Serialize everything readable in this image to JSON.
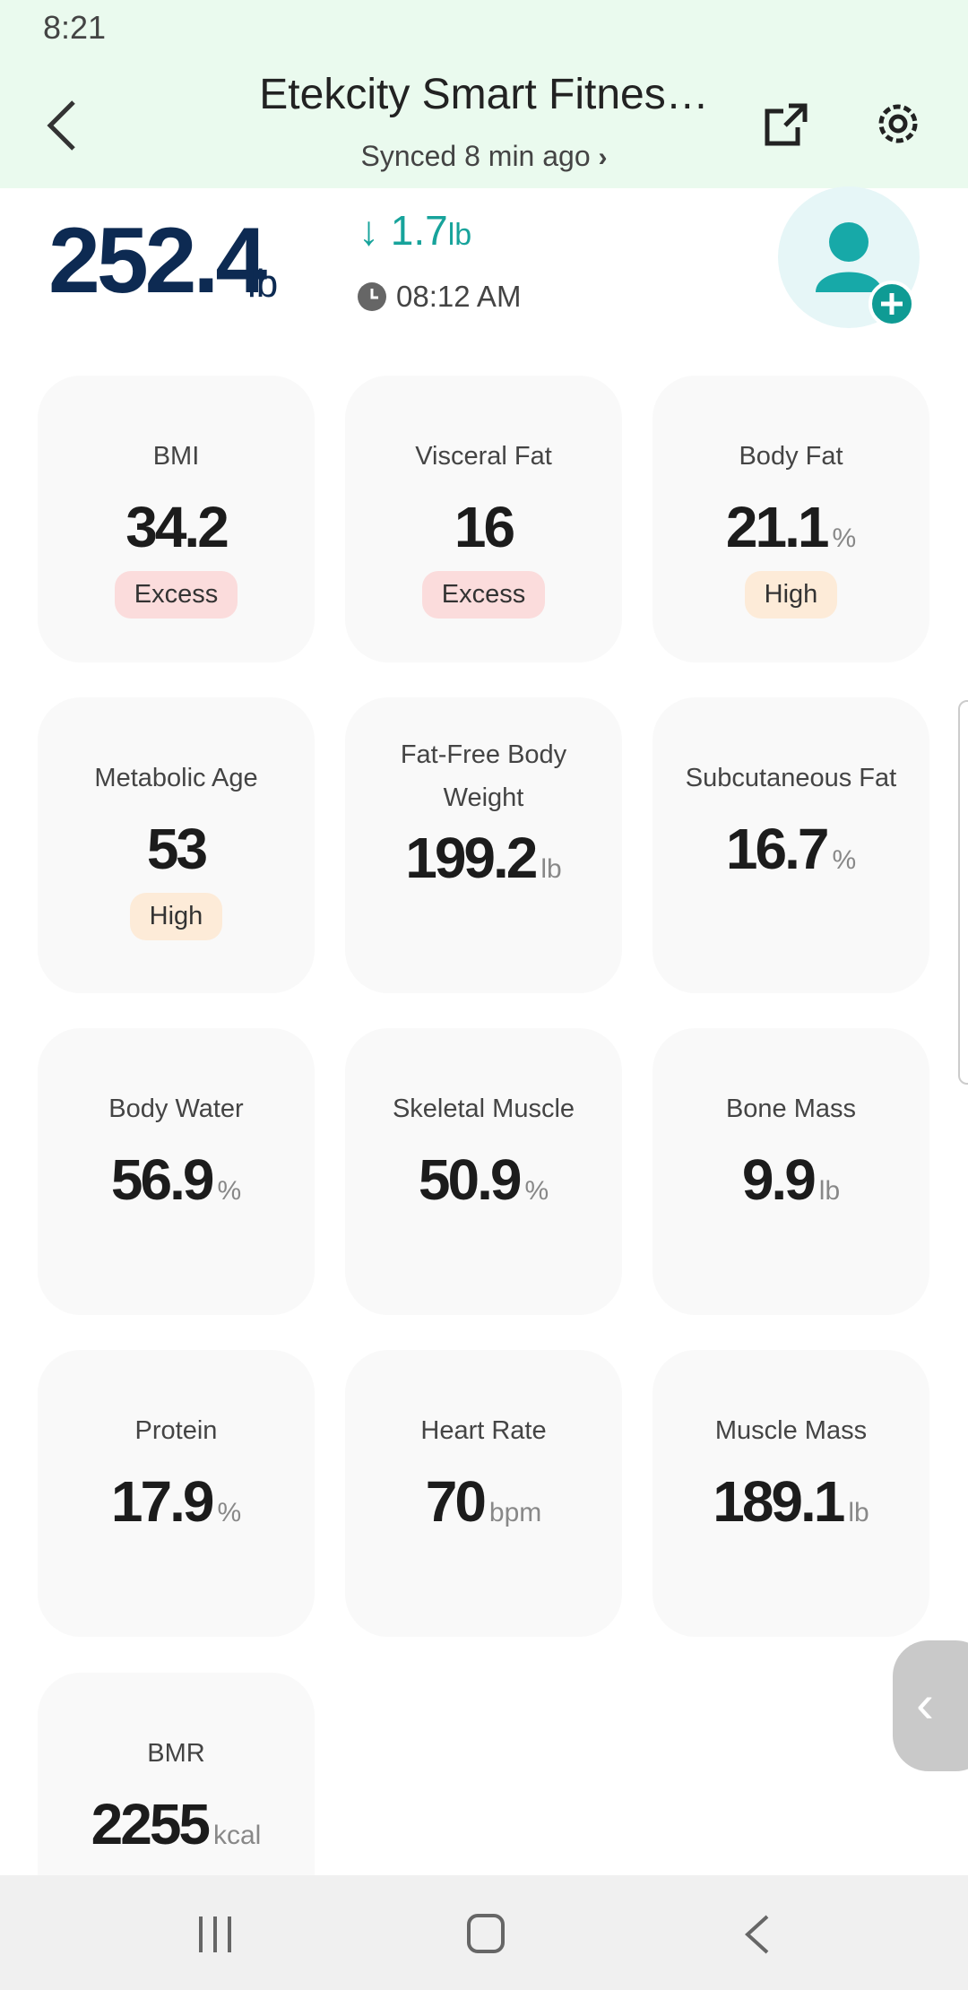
{
  "status_bar": {
    "time": "8:21"
  },
  "header": {
    "title": "Etekcity Smart Fitnes…",
    "subtitle": "Synced 8 min ago"
  },
  "summary": {
    "weight": "252.4",
    "unit": "lb",
    "change": "1.7",
    "change_unit": "lb",
    "time": "08:12 AM"
  },
  "metrics": [
    {
      "label": "BMI",
      "value": "34.2",
      "status": "Excess",
      "status_color": "#fbdcdc"
    },
    {
      "label": "Visceral Fat",
      "value": "16",
      "status": "Excess",
      "status_color": "#fbdcdc"
    },
    {
      "label": "Body Fat",
      "value": "21.1",
      "unit": "%",
      "status": "High",
      "status_color": "#fdebd8"
    },
    {
      "label": "Metabolic Age",
      "value": "53",
      "status": "High",
      "status_color": "#fdebd8"
    },
    {
      "label": "Fat-Free Body Weight",
      "value": "199.2",
      "unit": "lb"
    },
    {
      "label": "Subcutaneous Fat",
      "value": "16.7",
      "unit": "%"
    },
    {
      "label": "Body Water",
      "value": "56.9",
      "unit": "%"
    },
    {
      "label": "Skeletal Muscle",
      "value": "50.9",
      "unit": "%"
    },
    {
      "label": "Bone Mass",
      "value": "9.9",
      "unit": "lb"
    },
    {
      "label": "Protein",
      "value": "17.9",
      "unit": "%"
    },
    {
      "label": "Heart Rate",
      "value": "70",
      "unit": "bpm"
    },
    {
      "label": "Muscle Mass",
      "value": "189.1",
      "unit": "lb"
    },
    {
      "label": "BMR",
      "value": "2255",
      "unit": "kcal"
    }
  ]
}
